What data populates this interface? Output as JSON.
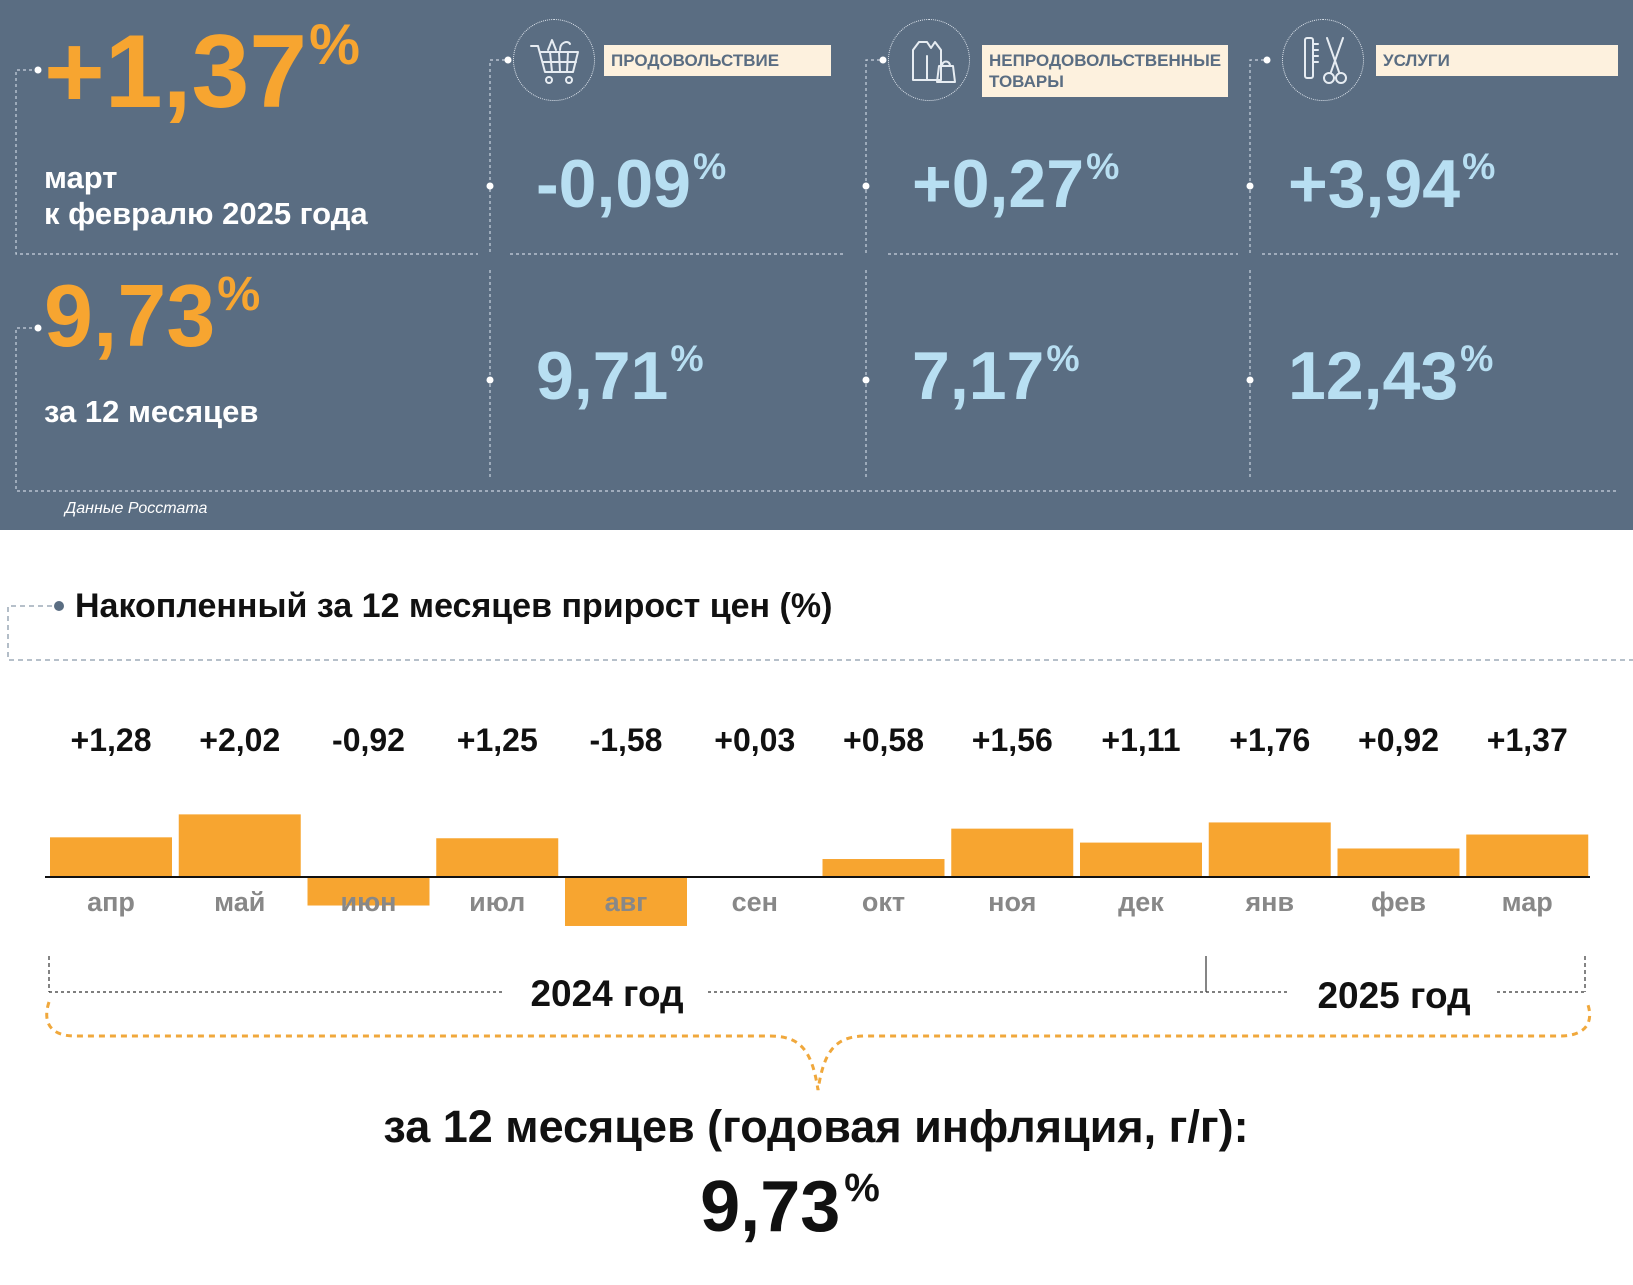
{
  "headline": {
    "monthly_value": "+1,37",
    "percent_sign": "%",
    "monthly_caption_1": "март",
    "monthly_caption_2": "к февралю 2025 года",
    "annual_value": "9,73",
    "annual_caption": "за 12 месяцев",
    "source": "Данные Росстата"
  },
  "categories": [
    {
      "label": "ПРОДОВОЛЬСТВИЕ",
      "icon": "shopping-cart-icon",
      "monthly": "-0,09",
      "annual": "9,71"
    },
    {
      "label_1": "НЕПРОДОВОЛЬСТВЕННЫЕ",
      "label_2": "ТОВАРЫ",
      "icon": "hoodie-bag-icon",
      "monthly": "+0,27",
      "annual": "7,17"
    },
    {
      "label": "УСЛУГИ",
      "icon": "comb-scissors-icon",
      "monthly": "+3,94",
      "annual": "12,43"
    }
  ],
  "colors": {
    "panel": "#5a6d82",
    "accent": "#f7a530",
    "light_blue": "#b8dff2",
    "label_bg": "#fdf1de"
  },
  "chart_data": {
    "type": "bar",
    "title": "Накопленный за 12 месяцев прирост цен (%)",
    "categories": [
      "апр",
      "май",
      "июн",
      "июл",
      "авг",
      "сен",
      "окт",
      "ноя",
      "дек",
      "янв",
      "фев",
      "мар"
    ],
    "values": [
      1.28,
      2.02,
      -0.92,
      1.25,
      -1.58,
      0.03,
      0.58,
      1.56,
      1.11,
      1.76,
      0.92,
      1.37
    ],
    "value_labels": [
      "+1,28",
      "+2,02",
      "-0,92",
      "+1,25",
      "-1,58",
      "+0,03",
      "+0,58",
      "+1,56",
      "+1,11",
      "+1,76",
      "+0,92",
      "+1,37"
    ],
    "bar_color": "#f7a530",
    "grid": false,
    "year_labels": [
      "2024 год",
      "2025 год"
    ],
    "summary_caption": "за 12 месяцев (годовая инфляция, г/г):",
    "summary_value": "9,73",
    "percent_sign": "%"
  }
}
